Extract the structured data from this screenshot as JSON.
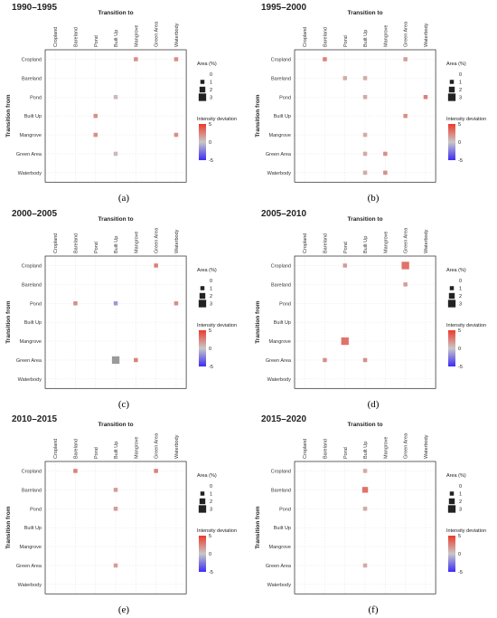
{
  "chart_data": [
    {
      "type": "heatmap",
      "title": "1990–1995",
      "caption": "(a)",
      "x_title": "Transition to",
      "y_title": "Transition from",
      "x_categories": [
        "Cropland",
        "Bareland",
        "Pond",
        "Built Up",
        "Mangrove",
        "Green Area",
        "Waterbody"
      ],
      "y_categories": [
        "Cropland",
        "Bareland",
        "Pond",
        "Built Up",
        "Mangrove",
        "Green Area",
        "Waterbody"
      ],
      "cells": [
        {
          "from": "Cropland",
          "to": "Mangrove",
          "area": 1,
          "deviation": 2
        },
        {
          "from": "Cropland",
          "to": "Waterbody",
          "area": 1,
          "deviation": 2
        },
        {
          "from": "Pond",
          "to": "Built Up",
          "area": 1,
          "deviation": 0.5
        },
        {
          "from": "Built Up",
          "to": "Pond",
          "area": 1,
          "deviation": 2
        },
        {
          "from": "Mangrove",
          "to": "Pond",
          "area": 1,
          "deviation": 2
        },
        {
          "from": "Mangrove",
          "to": "Waterbody",
          "area": 1,
          "deviation": 2
        },
        {
          "from": "Green Area",
          "to": "Built Up",
          "area": 1,
          "deviation": 0.5
        }
      ]
    },
    {
      "type": "heatmap",
      "title": "1995–2000",
      "caption": "(b)",
      "x_title": "Transition to",
      "y_title": "Transition from",
      "x_categories": [
        "Cropland",
        "Bareland",
        "Pond",
        "Built Up",
        "Mangrove",
        "Green Area",
        "Waterbody"
      ],
      "y_categories": [
        "Cropland",
        "Bareland",
        "Pond",
        "Built Up",
        "Mangrove",
        "Green Area",
        "Waterbody"
      ],
      "cells": [
        {
          "from": "Cropland",
          "to": "Bareland",
          "area": 1,
          "deviation": 2.5
        },
        {
          "from": "Cropland",
          "to": "Green Area",
          "area": 1,
          "deviation": 1.5
        },
        {
          "from": "Bareland",
          "to": "Pond",
          "area": 1,
          "deviation": 1
        },
        {
          "from": "Bareland",
          "to": "Built Up",
          "area": 1,
          "deviation": 1
        },
        {
          "from": "Pond",
          "to": "Built Up",
          "area": 1,
          "deviation": 1
        },
        {
          "from": "Pond",
          "to": "Waterbody",
          "area": 1,
          "deviation": 2.5
        },
        {
          "from": "Built Up",
          "to": "Green Area",
          "area": 1,
          "deviation": 2
        },
        {
          "from": "Mangrove",
          "to": "Built Up",
          "area": 1,
          "deviation": 1
        },
        {
          "from": "Green Area",
          "to": "Built Up",
          "area": 1,
          "deviation": 1
        },
        {
          "from": "Green Area",
          "to": "Mangrove",
          "area": 1,
          "deviation": 2
        },
        {
          "from": "Waterbody",
          "to": "Built Up",
          "area": 1,
          "deviation": 1
        },
        {
          "from": "Waterbody",
          "to": "Mangrove",
          "area": 1,
          "deviation": 2
        }
      ]
    },
    {
      "type": "heatmap",
      "title": "2000–2005",
      "caption": "(c)",
      "x_title": "Transition to",
      "y_title": "Transition from",
      "x_categories": [
        "Cropland",
        "Bareland",
        "Pond",
        "Built Up",
        "Mangrove",
        "Green Area",
        "Waterbody"
      ],
      "y_categories": [
        "Cropland",
        "Bareland",
        "Pond",
        "Built Up",
        "Mangrove",
        "Green Area",
        "Waterbody"
      ],
      "cells": [
        {
          "from": "Cropland",
          "to": "Green Area",
          "area": 1,
          "deviation": 2.5
        },
        {
          "from": "Pond",
          "to": "Bareland",
          "area": 1,
          "deviation": 2
        },
        {
          "from": "Pond",
          "to": "Built Up",
          "area": 1,
          "deviation": -1.5
        },
        {
          "from": "Pond",
          "to": "Waterbody",
          "area": 1,
          "deviation": 2
        },
        {
          "from": "Green Area",
          "to": "Built Up",
          "area": 3,
          "deviation": 0
        },
        {
          "from": "Green Area",
          "to": "Mangrove",
          "area": 1,
          "deviation": 2.5
        }
      ]
    },
    {
      "type": "heatmap",
      "title": "2005–2010",
      "caption": "(d)",
      "x_title": "Transition to",
      "y_title": "Transition from",
      "x_categories": [
        "Cropland",
        "Bareland",
        "Pond",
        "Built Up",
        "Mangrove",
        "Green Area",
        "Waterbody"
      ],
      "y_categories": [
        "Cropland",
        "Bareland",
        "Pond",
        "Built Up",
        "Mangrove",
        "Green Area",
        "Waterbody"
      ],
      "cells": [
        {
          "from": "Cropland",
          "to": "Pond",
          "area": 1,
          "deviation": 1.5
        },
        {
          "from": "Cropland",
          "to": "Green Area",
          "area": 3,
          "deviation": 3
        },
        {
          "from": "Bareland",
          "to": "Green Area",
          "area": 1,
          "deviation": 1.5
        },
        {
          "from": "Mangrove",
          "to": "Pond",
          "area": 3,
          "deviation": 3
        },
        {
          "from": "Green Area",
          "to": "Bareland",
          "area": 1,
          "deviation": 2
        },
        {
          "from": "Green Area",
          "to": "Built Up",
          "area": 1,
          "deviation": 2
        }
      ]
    },
    {
      "type": "heatmap",
      "title": "2010–2015",
      "caption": "(e)",
      "x_title": "Transition to",
      "y_title": "Transition from",
      "x_categories": [
        "Cropland",
        "Bareland",
        "Pond",
        "Built Up",
        "Mangrove",
        "Green Area",
        "Waterbody"
      ],
      "y_categories": [
        "Cropland",
        "Bareland",
        "Pond",
        "Built Up",
        "Mangrove",
        "Green Area",
        "Waterbody"
      ],
      "cells": [
        {
          "from": "Cropland",
          "to": "Bareland",
          "area": 1,
          "deviation": 2.5
        },
        {
          "from": "Cropland",
          "to": "Green Area",
          "area": 1,
          "deviation": 2.5
        },
        {
          "from": "Bareland",
          "to": "Built Up",
          "area": 1,
          "deviation": 1.5
        },
        {
          "from": "Pond",
          "to": "Built Up",
          "area": 1,
          "deviation": 1.5
        },
        {
          "from": "Green Area",
          "to": "Built Up",
          "area": 1,
          "deviation": 1.5
        }
      ]
    },
    {
      "type": "heatmap",
      "title": "2015–2020",
      "caption": "(f)",
      "x_title": "Transition to",
      "y_title": "Transition from",
      "x_categories": [
        "Cropland",
        "Bareland",
        "Pond",
        "Built Up",
        "Mangrove",
        "Green Area",
        "Waterbody"
      ],
      "y_categories": [
        "Cropland",
        "Bareland",
        "Pond",
        "Built Up",
        "Mangrove",
        "Green Area",
        "Waterbody"
      ],
      "cells": [
        {
          "from": "Cropland",
          "to": "Built Up",
          "area": 1,
          "deviation": 1
        },
        {
          "from": "Bareland",
          "to": "Built Up",
          "area": 2,
          "deviation": 3
        },
        {
          "from": "Pond",
          "to": "Built Up",
          "area": 1,
          "deviation": 1
        },
        {
          "from": "Green Area",
          "to": "Built Up",
          "area": 1,
          "deviation": 1
        }
      ]
    }
  ],
  "legend": {
    "size_title": "Area (%)",
    "size_levels": [
      0,
      1,
      2,
      3
    ],
    "color_title": "Intensity deviation",
    "color_ticks": [
      5,
      0,
      -5
    ],
    "color_range": [
      -5,
      5
    ],
    "colors": {
      "low": "#3d2cf5",
      "mid": "#c8c8c8",
      "high": "#ee3a2a"
    }
  }
}
